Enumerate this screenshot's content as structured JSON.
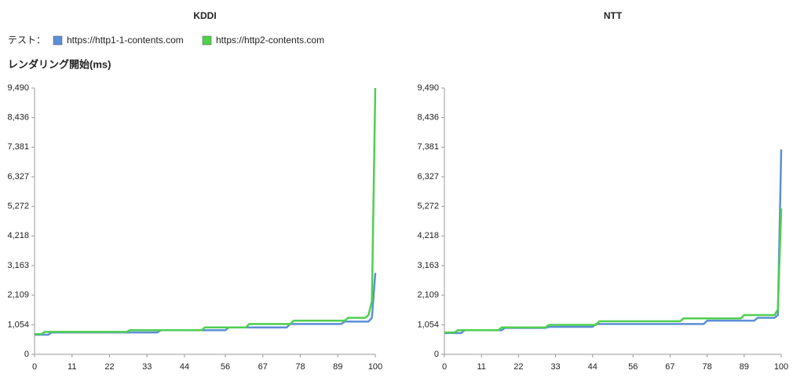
{
  "legend_title": "テスト：",
  "y_label": "レンダリング開始(ms)",
  "chart_data": [
    {
      "type": "line",
      "title": "KDDI",
      "xlim": [
        0,
        100
      ],
      "xticks": [
        0,
        11,
        22,
        33,
        44,
        56,
        67,
        78,
        89,
        100
      ],
      "ylim": [
        0,
        9490
      ],
      "yticks": [
        0,
        {
          "value": 1054,
          "label": "1,054"
        },
        {
          "value": 2109,
          "label": "2,109"
        },
        {
          "value": 3163,
          "label": "3,163"
        },
        {
          "value": 4218,
          "label": "4,218"
        },
        {
          "value": 5272,
          "label": "5,272"
        },
        {
          "value": 6327,
          "label": "6,327"
        },
        {
          "value": 7381,
          "label": "7,381"
        },
        {
          "value": 8436,
          "label": "8,436"
        },
        {
          "value": 9490,
          "label": "9,490"
        }
      ],
      "series": [
        {
          "name": "https://http1-1-contents.com",
          "color": "#5b8fd6",
          "x": [
            0,
            4,
            5,
            36,
            37,
            56,
            57,
            74,
            75,
            90,
            91,
            98,
            99,
            100
          ],
          "values": [
            700,
            700,
            780,
            780,
            860,
            860,
            960,
            960,
            1080,
            1080,
            1170,
            1170,
            1300,
            2900
          ]
        },
        {
          "name": "https://http2-contents.com",
          "color": "#4fcf4f",
          "x": [
            0,
            2,
            3,
            27,
            28,
            49,
            50,
            62,
            63,
            75,
            76,
            91,
            92,
            97,
            98,
            99,
            100
          ],
          "values": [
            720,
            720,
            800,
            800,
            860,
            860,
            960,
            960,
            1080,
            1080,
            1200,
            1200,
            1300,
            1300,
            1400,
            1900,
            9490
          ]
        }
      ]
    },
    {
      "type": "line",
      "title": "NTT",
      "xlim": [
        0,
        100
      ],
      "xticks": [
        0,
        11,
        22,
        33,
        44,
        56,
        67,
        78,
        89,
        100
      ],
      "ylim": [
        0,
        9490
      ],
      "yticks": [
        0,
        {
          "value": 1054,
          "label": "1,054"
        },
        {
          "value": 2109,
          "label": "2,109"
        },
        {
          "value": 3163,
          "label": "3,163"
        },
        {
          "value": 4218,
          "label": "4,218"
        },
        {
          "value": 5272,
          "label": "5,272"
        },
        {
          "value": 6327,
          "label": "6,327"
        },
        {
          "value": 7381,
          "label": "7,381"
        },
        {
          "value": 8436,
          "label": "8,436"
        },
        {
          "value": 9490,
          "label": "9,490"
        }
      ],
      "series": [
        {
          "color": "#5b8fd6",
          "x": [
            0,
            5,
            6,
            17,
            18,
            30,
            31,
            44,
            45,
            77,
            78,
            92,
            93,
            98,
            99,
            100
          ],
          "values": [
            760,
            760,
            860,
            860,
            940,
            940,
            980,
            980,
            1080,
            1080,
            1200,
            1200,
            1300,
            1300,
            1400,
            7300
          ]
        },
        {
          "color": "#4fcf4f",
          "x": [
            0,
            3,
            4,
            16,
            17,
            30,
            31,
            45,
            46,
            70,
            71,
            88,
            89,
            98,
            99,
            100
          ],
          "values": [
            780,
            780,
            860,
            860,
            960,
            960,
            1050,
            1050,
            1180,
            1180,
            1280,
            1280,
            1400,
            1400,
            1600,
            5200
          ]
        }
      ]
    }
  ]
}
